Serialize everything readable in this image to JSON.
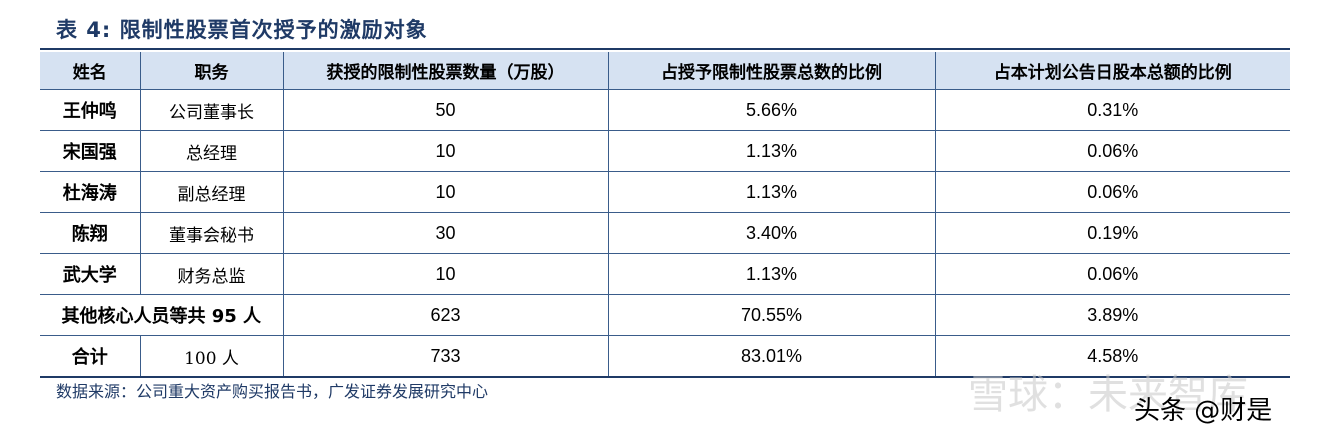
{
  "title": "表 4:  限制性股票首次授予的激励对象",
  "table": {
    "headers": [
      "姓名",
      "职务",
      "获授的限制性股票数量（万股）",
      "占授予限制性股票总数的比例",
      "占本计划公告日股本总额的比例"
    ],
    "rows": [
      [
        "王仲鸣",
        "公司董事长",
        "50",
        "5.66%",
        "0.31%"
      ],
      [
        "宋国强",
        "总经理",
        "10",
        "1.13%",
        "0.06%"
      ],
      [
        "杜海涛",
        "副总经理",
        "10",
        "1.13%",
        "0.06%"
      ],
      [
        "陈翔",
        "董事会秘书",
        "30",
        "3.40%",
        "0.19%"
      ],
      [
        "武大学",
        "财务总监",
        "10",
        "1.13%",
        "0.06%"
      ]
    ],
    "other_row": {
      "label": "其他核心人员等共 95 人",
      "qty": "623",
      "pct_grant": "70.55%",
      "pct_capital": "3.89%"
    },
    "total_row": {
      "label": "合计",
      "people": "100 人",
      "qty": "733",
      "pct_grant": "83.01%",
      "pct_capital": "4.58%"
    }
  },
  "source": "数据来源：公司重大资产购买报告书，广发证券发展研究中心",
  "watermark": {
    "text1": "雪球：未来智库",
    "text2": "头条 @财是"
  }
}
